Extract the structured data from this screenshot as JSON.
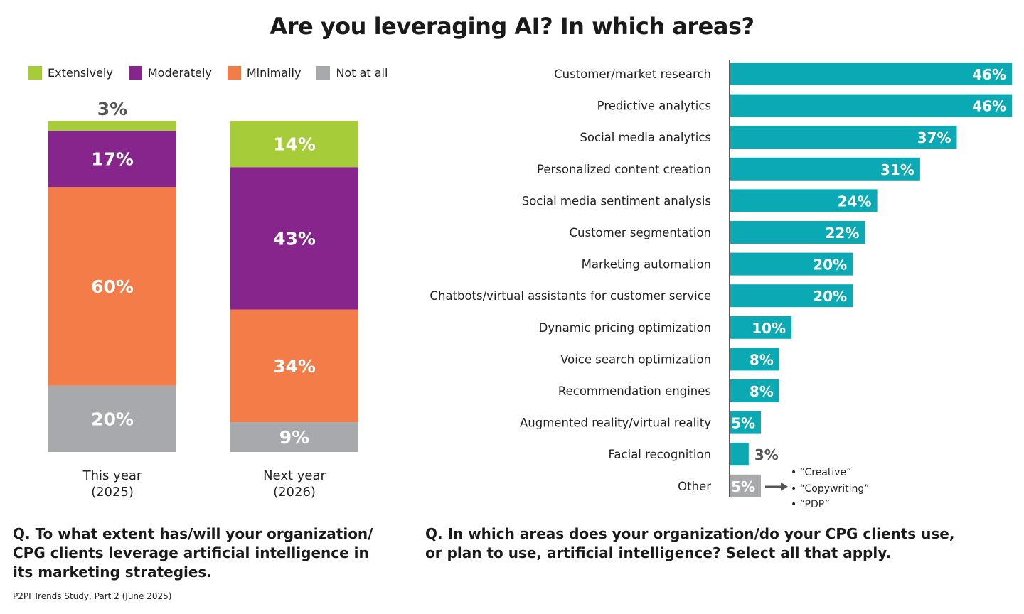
{
  "title": "Are you leveraging AI? In which areas?",
  "colors": {
    "extensively": "#a6cd39",
    "moderately": "#86268c",
    "minimally": "#f47c48",
    "not_at_all": "#a7a9ac",
    "bar": "#0aa9b3",
    "other_bar": "#a7a9ac"
  },
  "legend": [
    {
      "label": "Extensively",
      "color": "#a6cd39"
    },
    {
      "label": "Moderately",
      "color": "#86268c"
    },
    {
      "label": "Minimally",
      "color": "#f47c48"
    },
    {
      "label": "Not at all",
      "color": "#a7a9ac"
    }
  ],
  "chart_data": [
    {
      "type": "bar",
      "stacked": true,
      "categories": [
        "This year (2025)",
        "Next year (2026)"
      ],
      "category_lines": [
        [
          "This year",
          "(2025)"
        ],
        [
          "Next year",
          "(2026)"
        ]
      ],
      "series": [
        {
          "name": "Not at all",
          "values": [
            20,
            9
          ],
          "labels": [
            "20%",
            "9%"
          ]
        },
        {
          "name": "Minimally",
          "values": [
            60,
            34
          ],
          "labels": [
            "60%",
            "34%"
          ]
        },
        {
          "name": "Moderately",
          "values": [
            17,
            43
          ],
          "labels": [
            "17%",
            "43%"
          ]
        },
        {
          "name": "Extensively",
          "values": [
            3,
            14
          ],
          "labels": [
            "3%",
            "14%"
          ]
        }
      ],
      "legend_position": "top-left"
    },
    {
      "type": "bar",
      "orientation": "horizontal",
      "categories": [
        "Customer/market research",
        "Predictive analytics",
        "Social media analytics",
        "Personalized content creation",
        "Social media sentiment analysis",
        "Customer segmentation",
        "Marketing automation",
        "Chatbots/virtual assistants for customer service",
        "Dynamic pricing optimization",
        "Voice search optimization",
        "Recommendation engines",
        "Augmented reality/virtual reality",
        "Facial recognition",
        "Other"
      ],
      "values": [
        46,
        46,
        37,
        31,
        24,
        22,
        20,
        20,
        10,
        8,
        8,
        5,
        3,
        5
      ],
      "labels": [
        "46%",
        "46%",
        "37%",
        "31%",
        "24%",
        "22%",
        "20%",
        "20%",
        "10%",
        "8%",
        "8%",
        "5%",
        "3%",
        "5%"
      ],
      "xlim": [
        0,
        46
      ],
      "other_notes": [
        "“Creative”",
        "“Copywriting”",
        "“PDP”"
      ]
    }
  ],
  "questions": {
    "left": "Q. To what extent has/will your organization/ CPG clients leverage artificial intelligence in its marketing strategies.",
    "right": "Q. In which areas does your organization/do your CPG clients use, or plan to use, artificial intelligence? Select all that apply."
  },
  "source": "P2PI Trends Study, Part 2 (June 2025)"
}
